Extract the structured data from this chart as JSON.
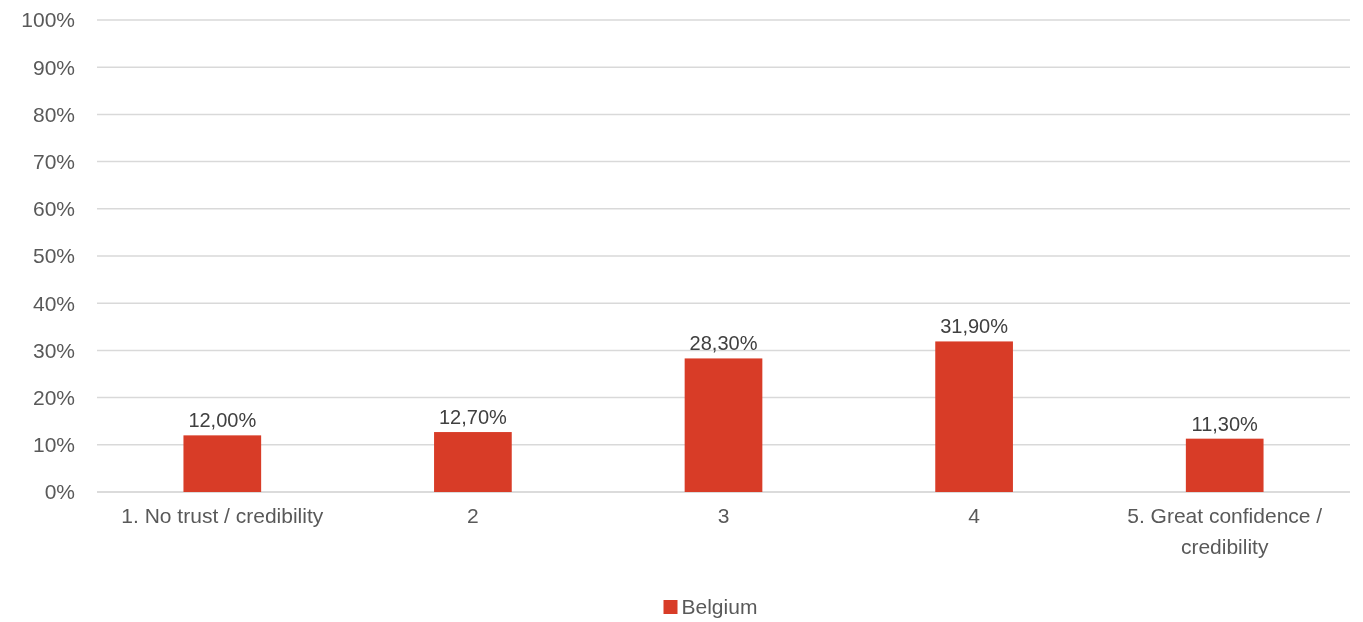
{
  "chart_data": {
    "type": "bar",
    "categories": [
      "1. No trust / credibility",
      "2",
      "3",
      "4",
      "5. Great confidence / credibility"
    ],
    "series": [
      {
        "name": "Belgium",
        "color": "#d83c27",
        "values": [
          12.0,
          12.7,
          28.3,
          31.9,
          11.3
        ]
      }
    ],
    "value_labels": [
      "12,00%",
      "12,70%",
      "28,30%",
      "31,90%",
      "11,30%"
    ],
    "ylim": [
      0,
      100
    ],
    "yticks": [
      {
        "value": 0,
        "label": "0%"
      },
      {
        "value": 10,
        "label": "10%"
      },
      {
        "value": 20,
        "label": "20%"
      },
      {
        "value": 30,
        "label": "30%"
      },
      {
        "value": 40,
        "label": "40%"
      },
      {
        "value": 50,
        "label": "50%"
      },
      {
        "value": 60,
        "label": "60%"
      },
      {
        "value": 70,
        "label": "70%"
      },
      {
        "value": 80,
        "label": "80%"
      },
      {
        "value": 90,
        "label": "90%"
      },
      {
        "value": 100,
        "label": "100%"
      }
    ],
    "grid": "y",
    "legend": "bottom"
  }
}
